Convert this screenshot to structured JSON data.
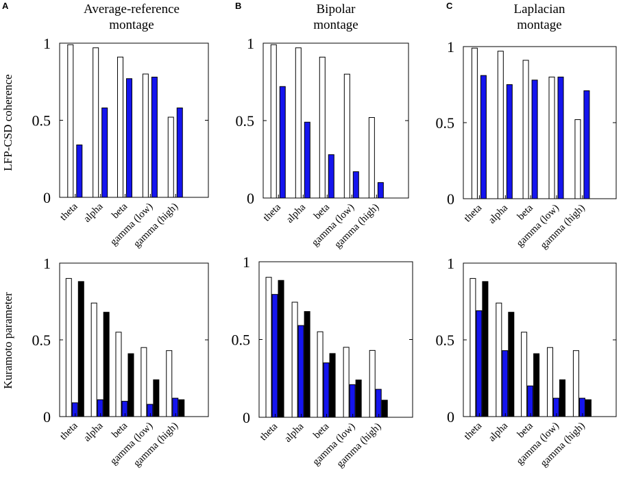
{
  "figure": {
    "ylabel_top": "LFP-CSD coherence",
    "ylabel_bottom": "Kuramoto parameter"
  },
  "colors": {
    "white_bar": "#ffffff",
    "blue_bar": "#1515ee",
    "black_bar": "#000000",
    "axis": "#000000"
  },
  "chart_data": [
    {
      "id": "A-top",
      "panel_letter": "A",
      "title": [
        "Average-reference",
        "montage"
      ],
      "type": "bar",
      "ylim": [
        0,
        1
      ],
      "yticks": [
        "0",
        "0.5",
        "1"
      ],
      "categories": [
        "theta",
        "alpha",
        "beta",
        "gamma (low)",
        "gamma (high)"
      ],
      "series": [
        {
          "name": "white",
          "values": [
            0.99,
            0.97,
            0.91,
            0.8,
            0.52
          ]
        },
        {
          "name": "blue",
          "values": [
            0.34,
            0.58,
            0.77,
            0.78,
            0.58
          ]
        }
      ]
    },
    {
      "id": "B-top",
      "panel_letter": "B",
      "title": [
        "Bipolar",
        "montage"
      ],
      "type": "bar",
      "ylim": [
        0,
        1
      ],
      "yticks": [
        "0",
        "0.5",
        "1"
      ],
      "categories": [
        "theta",
        "alpha",
        "beta",
        "gamma (low)",
        "gamma (high)"
      ],
      "series": [
        {
          "name": "white",
          "values": [
            0.99,
            0.97,
            0.91,
            0.8,
            0.52
          ]
        },
        {
          "name": "blue",
          "values": [
            0.72,
            0.49,
            0.28,
            0.17,
            0.1
          ]
        }
      ]
    },
    {
      "id": "C-top",
      "panel_letter": "C",
      "title": [
        "Laplacian",
        "montage"
      ],
      "type": "bar",
      "ylim": [
        0,
        1
      ],
      "yticks": [
        "0",
        "0.5",
        "1"
      ],
      "categories": [
        "theta",
        "alpha",
        "beta",
        "gamma (low)",
        "gamma (high)"
      ],
      "series": [
        {
          "name": "white",
          "values": [
            0.99,
            0.97,
            0.91,
            0.8,
            0.52
          ]
        },
        {
          "name": "blue",
          "values": [
            0.81,
            0.75,
            0.78,
            0.8,
            0.71
          ]
        }
      ]
    },
    {
      "id": "A-bottom",
      "panel_letter": "",
      "title": [],
      "type": "bar",
      "ylim": [
        0,
        1
      ],
      "yticks": [
        "0",
        "0.5",
        "1"
      ],
      "categories": [
        "theta",
        "alpha",
        "beta",
        "gamma (low)",
        "gamma (high)"
      ],
      "series": [
        {
          "name": "white",
          "values": [
            0.9,
            0.74,
            0.55,
            0.45,
            0.43
          ]
        },
        {
          "name": "blue",
          "values": [
            0.09,
            0.11,
            0.1,
            0.08,
            0.12
          ]
        },
        {
          "name": "black",
          "values": [
            0.88,
            0.68,
            0.41,
            0.24,
            0.11
          ]
        }
      ]
    },
    {
      "id": "B-bottom",
      "panel_letter": "",
      "title": [],
      "type": "bar",
      "ylim": [
        0,
        1
      ],
      "yticks": [
        "0",
        "0.5",
        "1"
      ],
      "categories": [
        "theta",
        "alpha",
        "beta",
        "gamma (low)",
        "gamma (high)"
      ],
      "series": [
        {
          "name": "white",
          "values": [
            0.9,
            0.74,
            0.55,
            0.45,
            0.43
          ]
        },
        {
          "name": "blue",
          "values": [
            0.79,
            0.59,
            0.35,
            0.21,
            0.18
          ]
        },
        {
          "name": "black",
          "values": [
            0.88,
            0.68,
            0.41,
            0.24,
            0.11
          ]
        }
      ]
    },
    {
      "id": "C-bottom",
      "panel_letter": "",
      "title": [],
      "type": "bar",
      "ylim": [
        0,
        1
      ],
      "yticks": [
        "0",
        "0.5",
        "1"
      ],
      "categories": [
        "theta",
        "alpha",
        "beta",
        "gamma (low)",
        "gamma (high)"
      ],
      "series": [
        {
          "name": "white",
          "values": [
            0.9,
            0.74,
            0.55,
            0.45,
            0.43
          ]
        },
        {
          "name": "blue",
          "values": [
            0.69,
            0.43,
            0.2,
            0.12,
            0.12
          ]
        },
        {
          "name": "black",
          "values": [
            0.88,
            0.68,
            0.41,
            0.24,
            0.11
          ]
        }
      ]
    }
  ]
}
